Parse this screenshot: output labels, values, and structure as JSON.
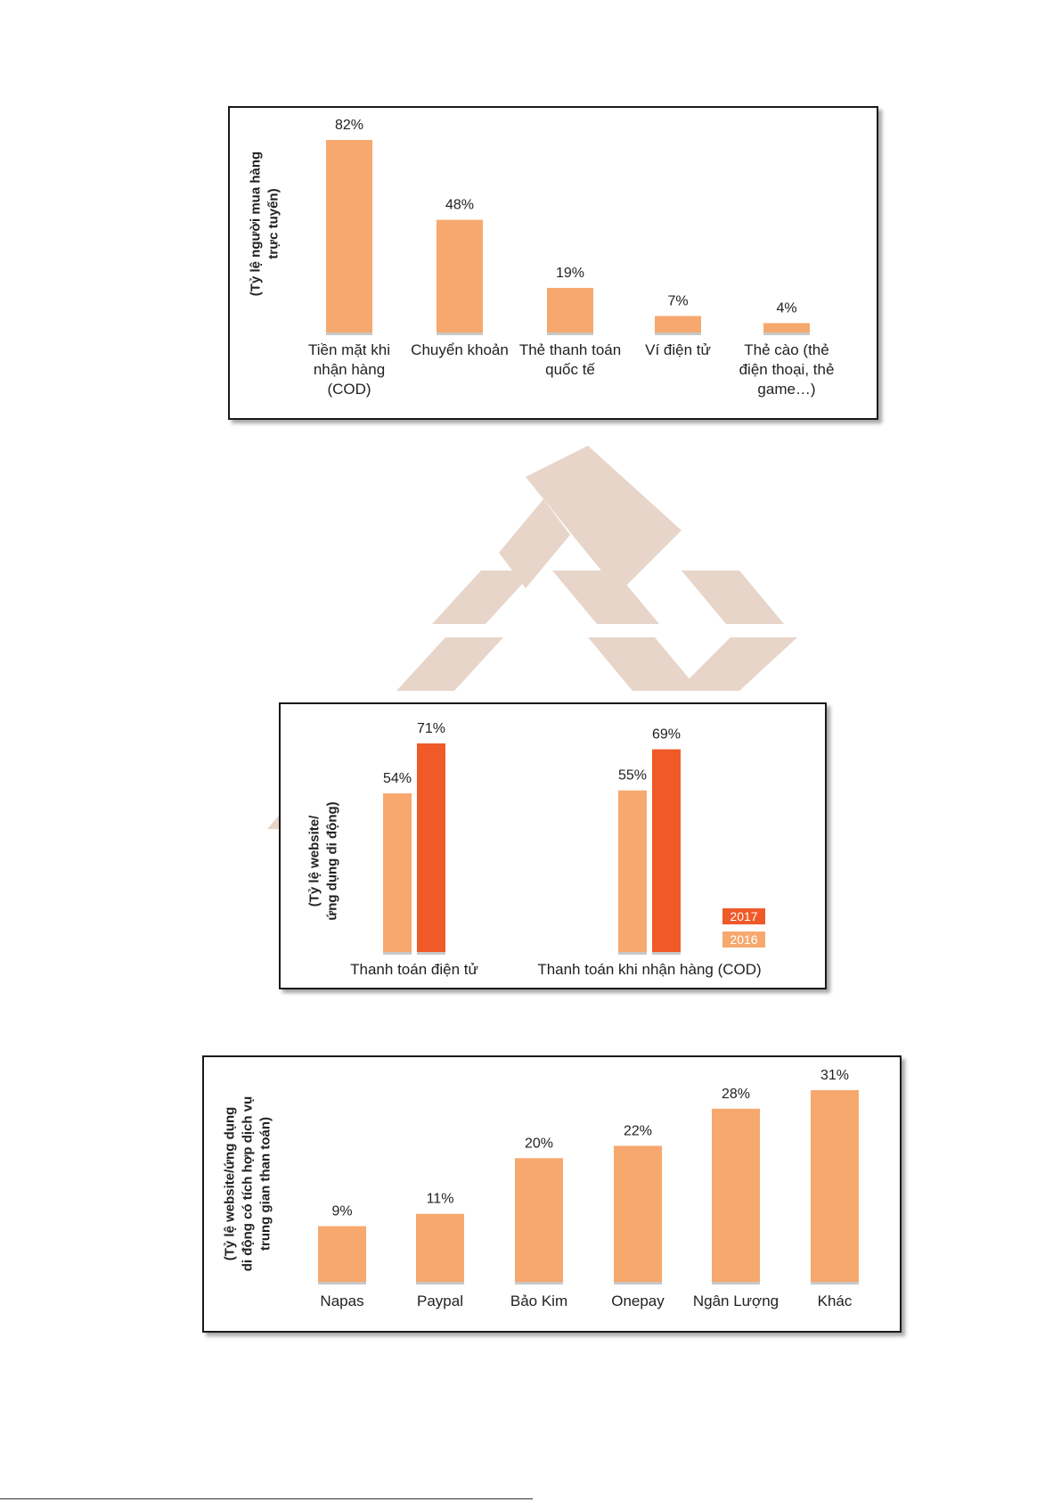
{
  "colors": {
    "bar_light": "#f7a86e",
    "bar_dark": "#f05a28",
    "baseline": "#c8c8c8",
    "watermark": "#e8d5c9",
    "text": "#222222"
  },
  "chart_data": [
    {
      "type": "bar",
      "ylabel_lines": [
        "(Tỷ lệ người mua hàng",
        "trực tuyến)"
      ],
      "categories": [
        [
          "Tiền mặt khi",
          "nhận hàng",
          "(COD)"
        ],
        [
          "Chuyển khoản"
        ],
        [
          "Thẻ thanh toán",
          "quốc tế"
        ],
        [
          "Ví điện tử"
        ],
        [
          "Thẻ cào (thẻ",
          "điện thoại, thẻ",
          "game…)"
        ]
      ],
      "values": [
        82,
        48,
        19,
        7,
        4
      ],
      "value_labels": [
        "82%",
        "48%",
        "19%",
        "7%",
        "4%"
      ],
      "ylim": [
        0,
        82
      ]
    },
    {
      "type": "bar",
      "ylabel_lines": [
        "(Tỷ lệ website/",
        "ứng dụng di động)"
      ],
      "categories": [
        "Thanh toán điện tử",
        "Thanh toán khi nhận hàng (COD)"
      ],
      "series": [
        {
          "name": "2016",
          "values": [
            54,
            55
          ],
          "value_labels": [
            "54%",
            "55%"
          ]
        },
        {
          "name": "2017",
          "values": [
            71,
            69
          ],
          "value_labels": [
            "71%",
            "69%"
          ]
        }
      ],
      "legend": [
        "2017",
        "2016"
      ],
      "ylim": [
        0,
        71
      ]
    },
    {
      "type": "bar",
      "ylabel_lines": [
        "(Tỷ lệ website/ứng dụng",
        "di động có tích hợp dịch vụ",
        "trung gian than toán)"
      ],
      "categories": [
        "Napas",
        "Paypal",
        "Bảo Kim",
        "Onepay",
        "Ngân Lượng",
        "Khác"
      ],
      "values": [
        9,
        11,
        20,
        22,
        28,
        31
      ],
      "value_labels": [
        "9%",
        "11%",
        "20%",
        "22%",
        "28%",
        "31%"
      ],
      "ylim": [
        0,
        31
      ]
    }
  ]
}
